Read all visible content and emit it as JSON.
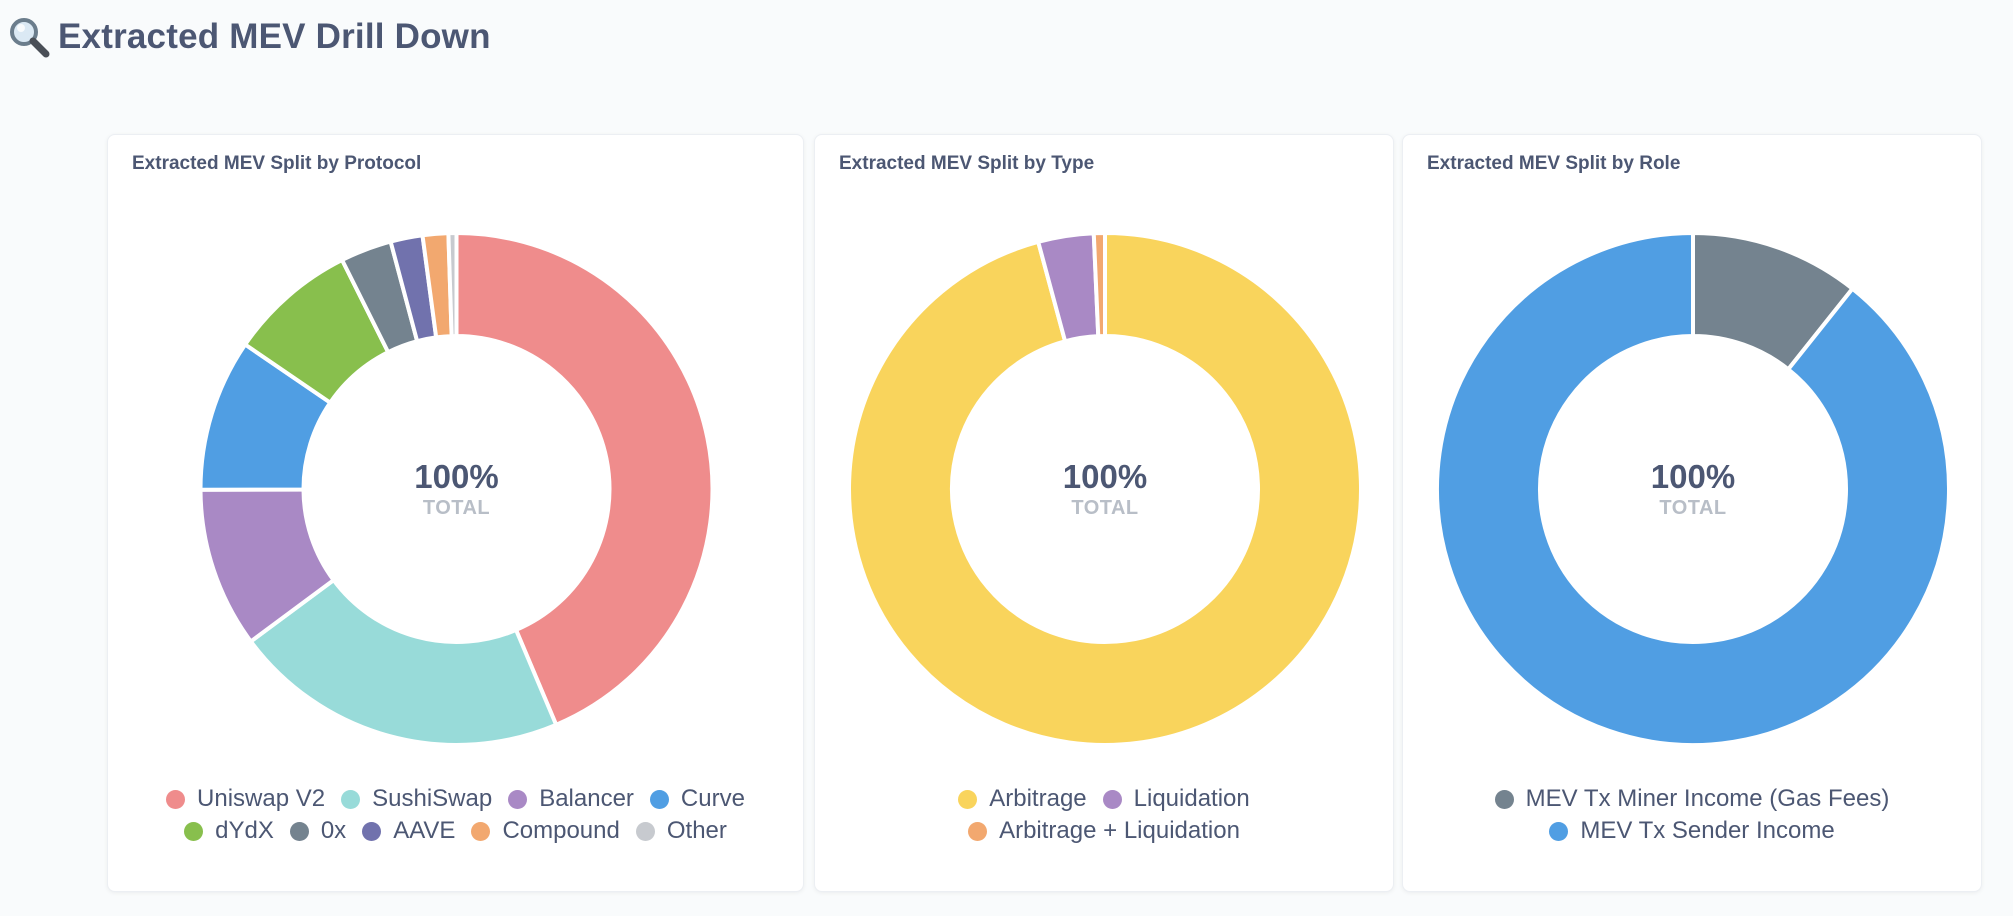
{
  "page": {
    "title": "Extracted MEV Drill Down",
    "icon": "magnifier-icon"
  },
  "chart_data": [
    {
      "type": "pie",
      "title": "Extracted MEV Split by Protocol",
      "center_value": "100%",
      "center_label": "TOTAL",
      "slices": [
        {
          "label": "Uniswap V2",
          "value": 43.2,
          "color": "#ef8c8c"
        },
        {
          "label": "SushiSwap",
          "value": 21.0,
          "color": "#98dbd9"
        },
        {
          "label": "Balancer",
          "value": 10.0,
          "color": "#a989c5"
        },
        {
          "label": "Curve",
          "value": 9.5,
          "color": "#509ee3"
        },
        {
          "label": "dYdX",
          "value": 8.0,
          "color": "#88bf4d"
        },
        {
          "label": "0x",
          "value": 3.2,
          "color": "#74838f"
        },
        {
          "label": "AAVE",
          "value": 2.0,
          "color": "#7172ad"
        },
        {
          "label": "Compound",
          "value": 1.6,
          "color": "#f2a86f"
        },
        {
          "label": "Other",
          "value": 0.5,
          "color": "#c7cacf"
        }
      ]
    },
    {
      "type": "pie",
      "title": "Extracted MEV Split by Type",
      "center_value": "100%",
      "center_label": "TOTAL",
      "slices": [
        {
          "label": "Arbitrage",
          "value": 95.8,
          "color": "#f9d45c"
        },
        {
          "label": "Liquidation",
          "value": 3.5,
          "color": "#a989c5"
        },
        {
          "label": "Arbitrage + Liquidation",
          "value": 0.7,
          "color": "#f2a86f"
        }
      ]
    },
    {
      "type": "pie",
      "title": "Extracted MEV Split by Role",
      "center_value": "100%",
      "center_label": "TOTAL",
      "slices": [
        {
          "label": "MEV Tx Miner Income (Gas Fees)",
          "value": 10.7,
          "color": "#74838f"
        },
        {
          "label": "MEV Tx Sender Income",
          "value": 89.3,
          "color": "#509ee3"
        }
      ]
    }
  ]
}
